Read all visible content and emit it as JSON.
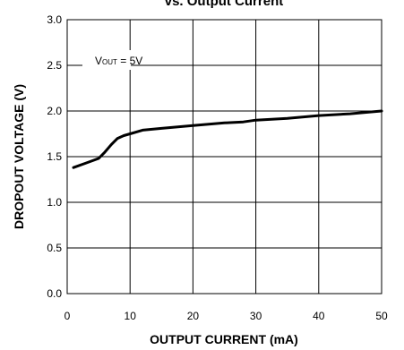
{
  "chart_data": {
    "type": "line",
    "title": "vs. Output Current",
    "xlabel": "OUTPUT CURRENT (mA)",
    "ylabel": "DROPOUT VOLTAGE (V)",
    "xlim": [
      0,
      50
    ],
    "ylim": [
      0.0,
      3.0
    ],
    "x_ticks": [
      "0",
      "10",
      "20",
      "30",
      "40",
      "50"
    ],
    "y_ticks": [
      "0.0",
      "0.5",
      "1.0",
      "1.5",
      "2.0",
      "2.5",
      "3.0"
    ],
    "grid": true,
    "annotation": {
      "prefix": "V",
      "subscript": "OUT",
      "suffix": " = 5V"
    },
    "series": [
      {
        "x": [
          1,
          3,
          5,
          6,
          7,
          8,
          9,
          10,
          12,
          15,
          20,
          25,
          28,
          30,
          35,
          40,
          45,
          50
        ],
        "y": [
          1.38,
          1.43,
          1.48,
          1.55,
          1.63,
          1.7,
          1.73,
          1.75,
          1.79,
          1.81,
          1.84,
          1.87,
          1.88,
          1.9,
          1.92,
          1.95,
          1.97,
          2.0
        ]
      }
    ]
  }
}
